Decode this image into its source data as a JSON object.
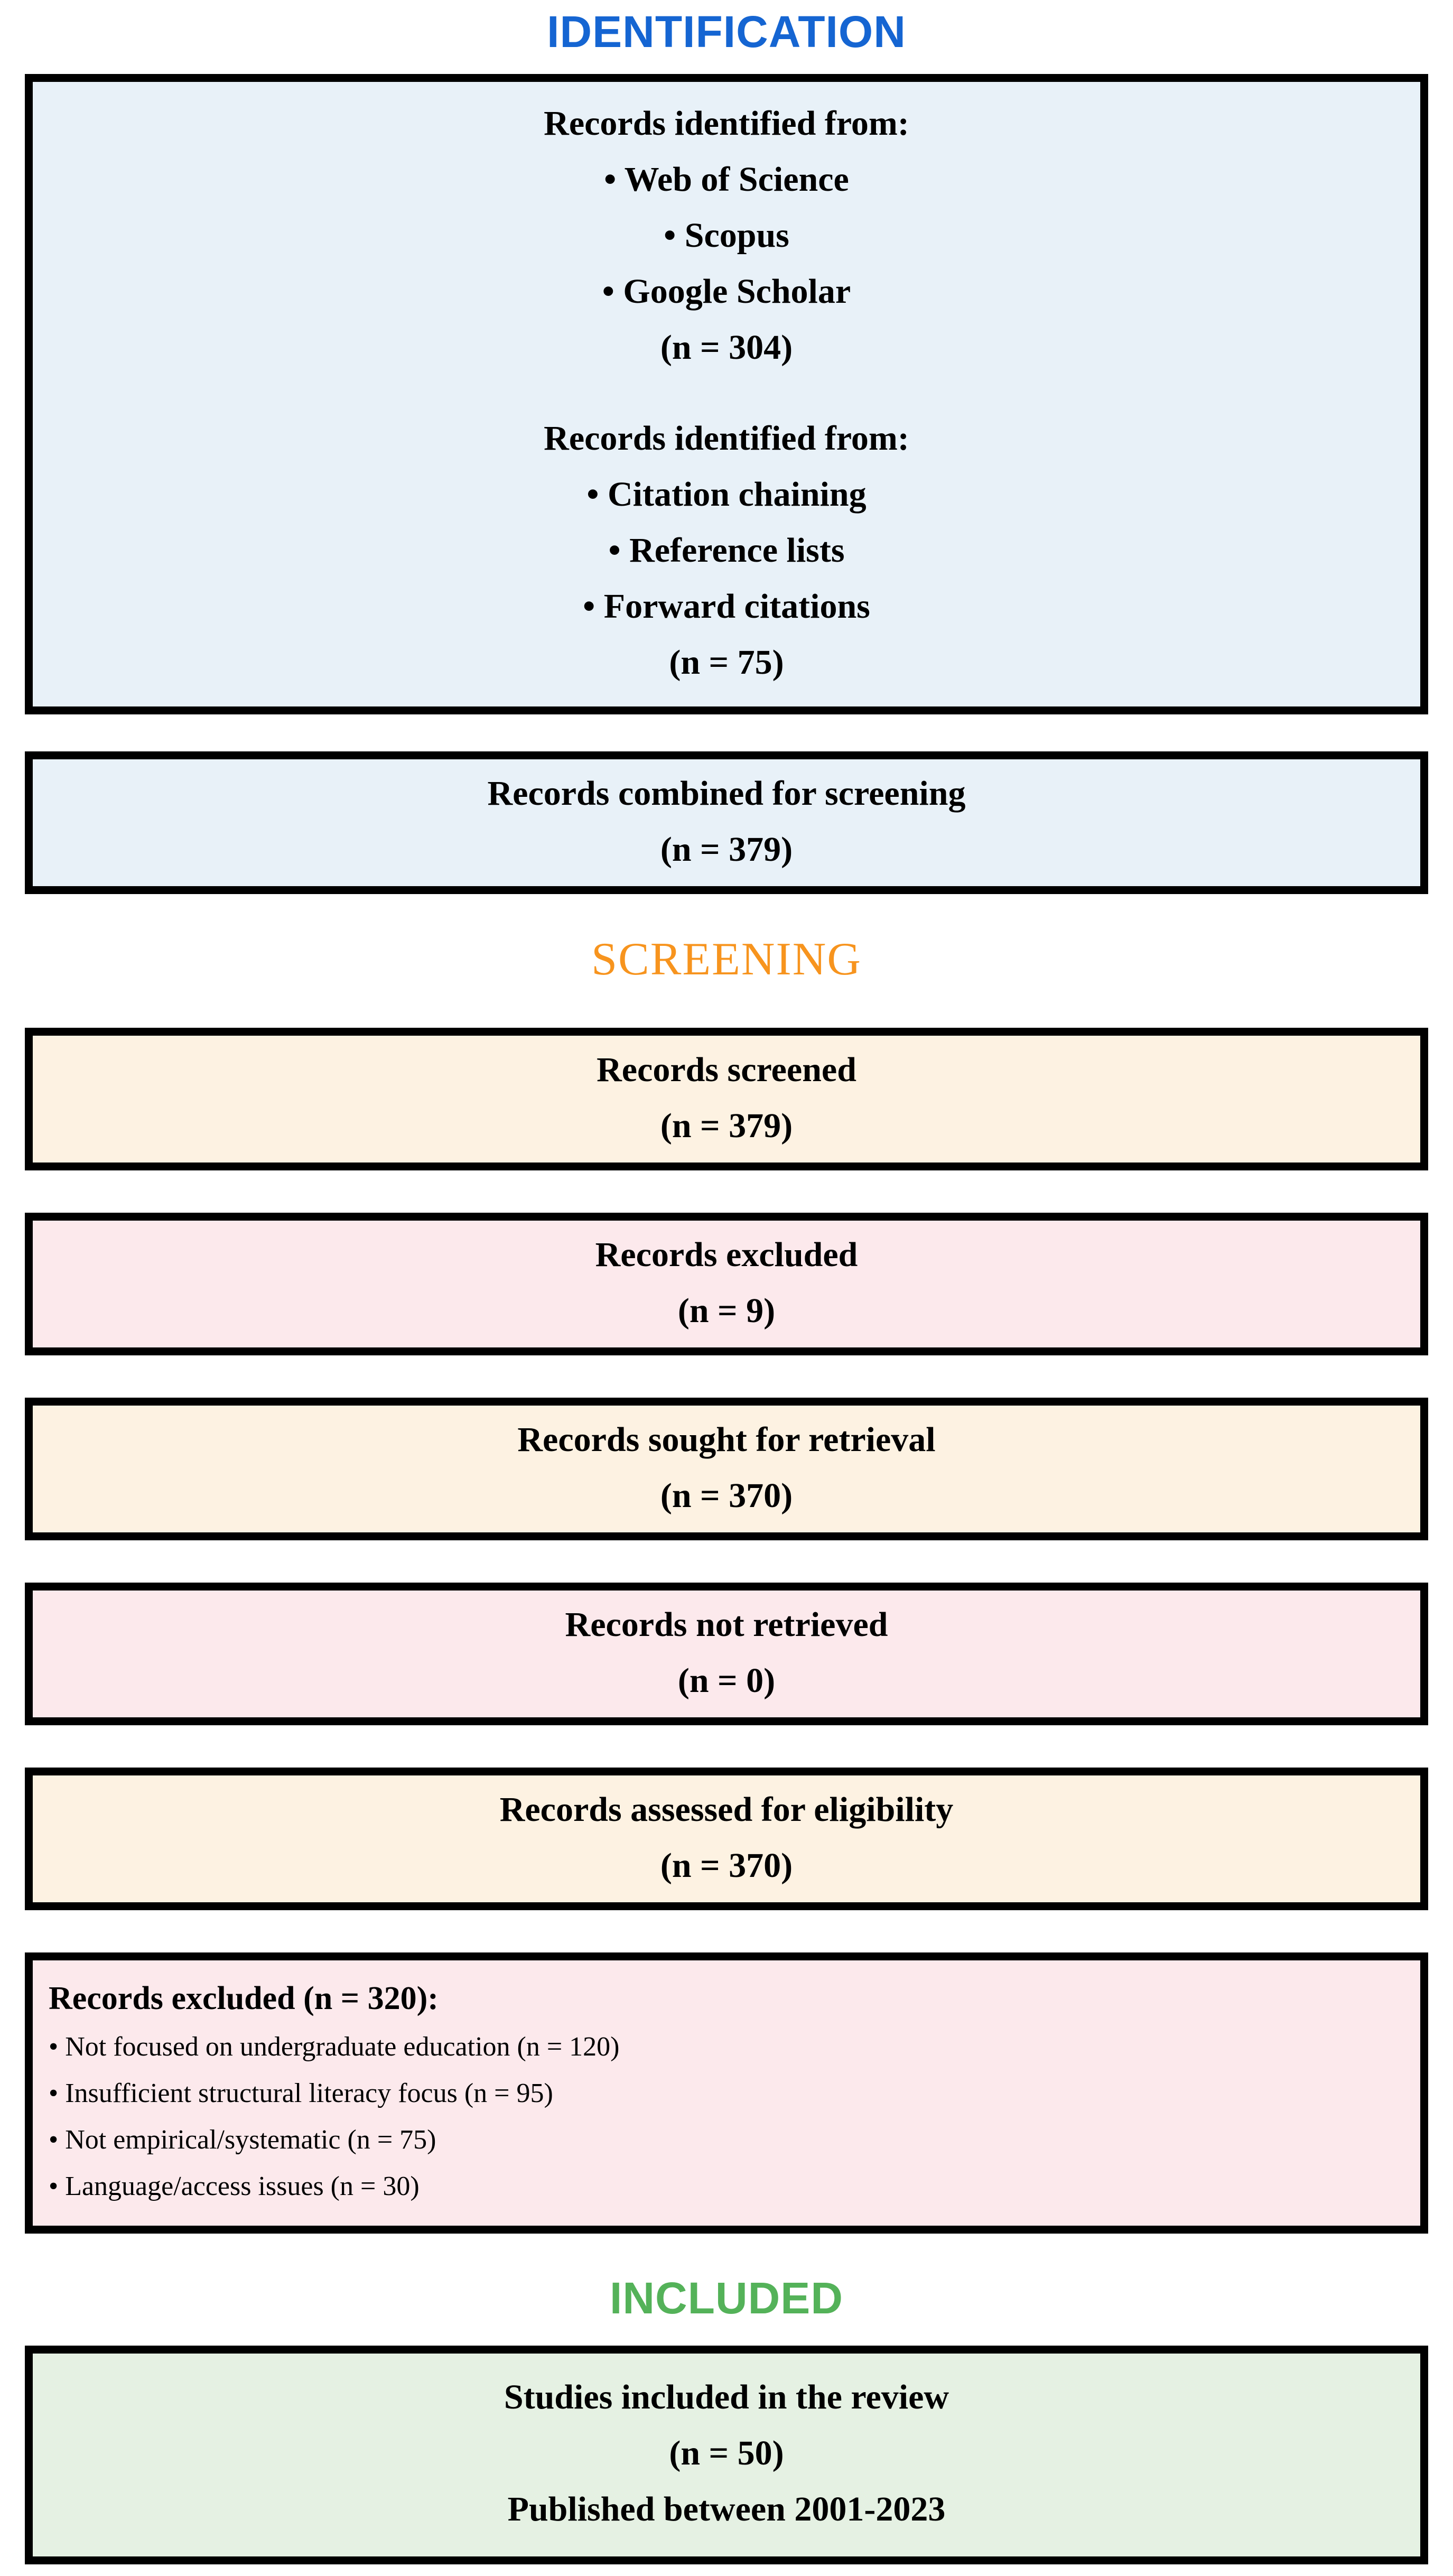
{
  "headers": {
    "identification": "IDENTIFICATION",
    "screening": "SCREENING",
    "included": "INCLUDED"
  },
  "colors": {
    "identification": "#1565d2",
    "screening": "#F7941E",
    "included": "#54B259",
    "border": "#000000",
    "box_blue": "#e8f1f8",
    "box_cream": "#fdf2e2",
    "box_pink": "#fce9ec",
    "box_green": "#e5f1e3"
  },
  "boxes": {
    "records_identified": {
      "group1": [
        "Records identified from:",
        "• Web of Science",
        "• Scopus",
        "• Google Scholar",
        "(n = 304)"
      ],
      "group2": [
        "Records identified from:",
        "• Citation chaining",
        "• Reference lists",
        "• Forward citations",
        "(n = 75)"
      ]
    },
    "records_combined": [
      "Records combined for screening",
      "(n = 379)"
    ],
    "records_screened": [
      "Records screened",
      "(n = 379)"
    ],
    "records_excluded_screening": [
      "Records excluded",
      "(n = 9)"
    ],
    "records_sought": [
      "Records sought for retrieval",
      "(n = 370)"
    ],
    "records_not_retrieved": [
      "Records not retrieved",
      "(n = 0)"
    ],
    "records_assessed": [
      "Records assessed for eligibility",
      "(n = 370)"
    ],
    "records_excluded_eligibility": {
      "title": "Records excluded (n = 320):",
      "reasons": [
        "• Not focused on undergraduate education (n = 120)",
        "• Insufficient structural literacy focus (n = 95)",
        "• Not empirical/systematic (n = 75)",
        "• Language/access issues (n = 30)"
      ]
    },
    "studies_included": [
      "Studies included in the review",
      "(n = 50)",
      "Published between 2001-2023"
    ]
  }
}
